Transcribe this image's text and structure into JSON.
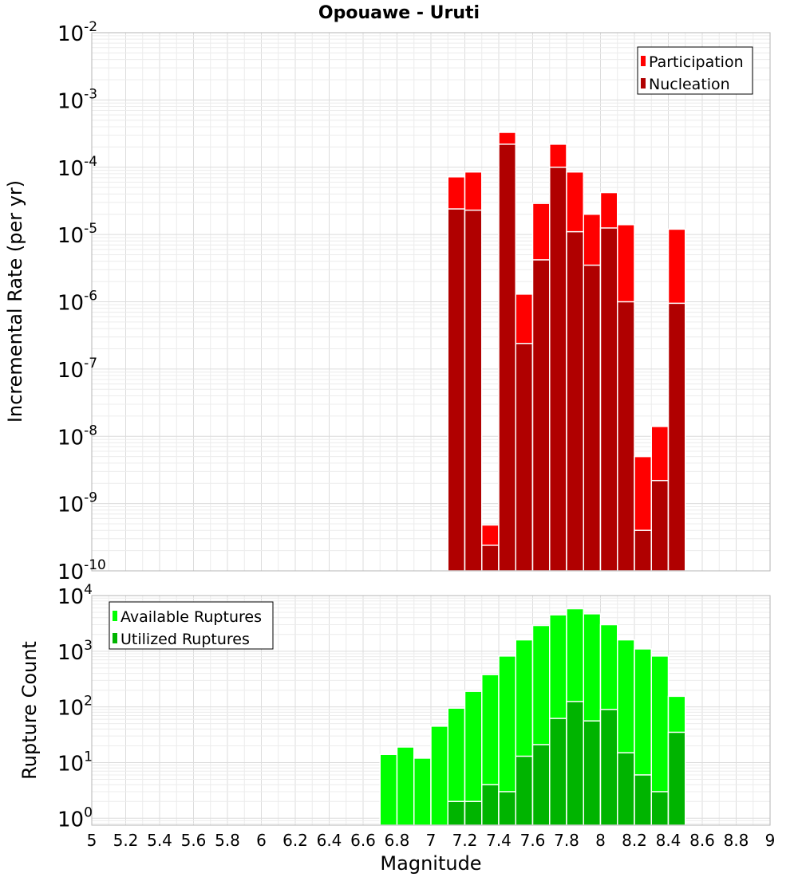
{
  "title": "Opouawe - Uruti",
  "x_axis_label": "Magnitude",
  "colors": {
    "participation": "#ff0000",
    "nucleation": "#b00000",
    "available": "#00ff00",
    "utilized": "#00b400"
  },
  "chart_data": [
    {
      "type": "bar",
      "name": "rate-chart",
      "ylabel": "Incremental Rate (per yr)",
      "yscale": "log",
      "ylim": [
        1e-10,
        0.01
      ],
      "xlim": [
        5,
        9
      ],
      "legend_position": "top-right",
      "legend": [
        "Participation",
        "Nucleation"
      ],
      "x": [
        7.15,
        7.25,
        7.35,
        7.45,
        7.55,
        7.65,
        7.75,
        7.85,
        7.95,
        8.05,
        8.15,
        8.25,
        8.35,
        8.45
      ],
      "series": [
        {
          "name": "Participation",
          "values": [
            7.2e-05,
            8.5e-05,
            4.8e-10,
            0.00033,
            1.3e-06,
            2.9e-05,
            0.00022,
            8.5e-05,
            2e-05,
            4.2e-05,
            1.4e-05,
            5e-09,
            1.4e-08,
            1.2e-05
          ]
        },
        {
          "name": "Nucleation",
          "values": [
            2.4e-05,
            2.3e-05,
            2.4e-10,
            0.00022,
            2.4e-07,
            4.2e-06,
            0.0001,
            1.1e-05,
            3.5e-06,
            1.25e-05,
            1e-06,
            4e-10,
            2.2e-09,
            9.5e-07
          ]
        }
      ]
    },
    {
      "type": "bar",
      "name": "count-chart",
      "ylabel": "Rupture Count",
      "yscale": "log",
      "ylim": [
        0.75,
        10000
      ],
      "xlim": [
        5,
        9
      ],
      "legend_position": "top-left",
      "legend": [
        "Available Ruptures",
        "Utilized Ruptures"
      ],
      "x": [
        6.75,
        6.85,
        6.95,
        7.05,
        7.15,
        7.25,
        7.35,
        7.45,
        7.55,
        7.65,
        7.75,
        7.85,
        7.95,
        8.05,
        8.15,
        8.25,
        8.35,
        8.45
      ],
      "series": [
        {
          "name": "Available Ruptures",
          "values": [
            14,
            19,
            12,
            45,
            95,
            190,
            380,
            820,
            1600,
            2900,
            4500,
            5800,
            4700,
            3000,
            1600,
            1100,
            820,
            155
          ]
        },
        {
          "name": "Utilized Ruptures",
          "values": [
            null,
            null,
            null,
            null,
            2,
            2,
            4,
            3,
            13,
            21,
            62,
            125,
            56,
            90,
            15,
            6,
            3,
            35
          ]
        }
      ]
    }
  ],
  "x_ticks": [
    "5",
    "5.2",
    "5.4",
    "5.6",
    "5.8",
    "6",
    "6.2",
    "6.4",
    "6.6",
    "6.8",
    "7",
    "7.2",
    "7.4",
    "7.6",
    "7.8",
    "8",
    "8.2",
    "8.4",
    "8.6",
    "8.8",
    "9"
  ],
  "top_y_ticks": [
    {
      "base": "10",
      "exp": "-2"
    },
    {
      "base": "10",
      "exp": "-3"
    },
    {
      "base": "10",
      "exp": "-4"
    },
    {
      "base": "10",
      "exp": "-5"
    },
    {
      "base": "10",
      "exp": "-6"
    },
    {
      "base": "10",
      "exp": "-7"
    },
    {
      "base": "10",
      "exp": "-8"
    },
    {
      "base": "10",
      "exp": "-9"
    },
    {
      "base": "10",
      "exp": "-10"
    }
  ],
  "bottom_y_ticks": [
    {
      "base": "10",
      "exp": "4"
    },
    {
      "base": "10",
      "exp": "3"
    },
    {
      "base": "10",
      "exp": "2"
    },
    {
      "base": "10",
      "exp": "1"
    },
    {
      "base": "10",
      "exp": "0"
    }
  ]
}
